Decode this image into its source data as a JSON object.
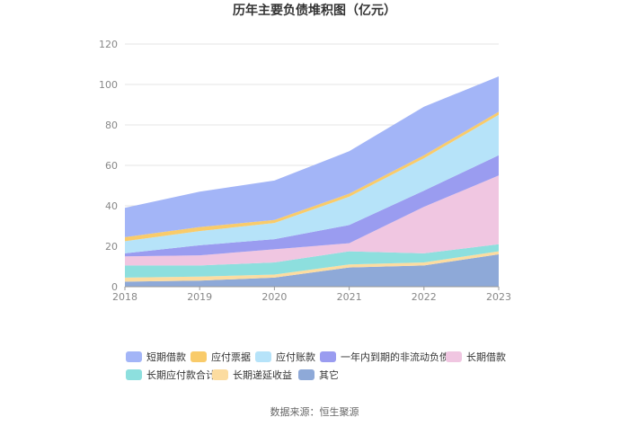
{
  "chart_data": {
    "type": "area",
    "stacked": true,
    "title": "历年主要负债堆积图（亿元）",
    "x": [
      "2018",
      "2019",
      "2020",
      "2021",
      "2022",
      "2023"
    ],
    "ylim": [
      0,
      120
    ],
    "yticks": [
      0,
      20,
      40,
      60,
      80,
      100,
      120
    ],
    "grid": true,
    "legend_position": "bottom",
    "series": [
      {
        "name": "其它",
        "color": "#8ea9d8",
        "values": [
          2.5,
          3,
          4.5,
          9.5,
          10.5,
          16
        ]
      },
      {
        "name": "长期递延收益",
        "color": "#fcdca0",
        "values": [
          2,
          2,
          1.5,
          1.5,
          1.5,
          1.5
        ]
      },
      {
        "name": "长期应付款合计",
        "color": "#8ddfde",
        "values": [
          6,
          5.5,
          6,
          6.5,
          4.5,
          3.5
        ]
      },
      {
        "name": "长期借款",
        "color": "#f0c6e1",
        "values": [
          4.5,
          5,
          6.5,
          4,
          23,
          34
        ]
      },
      {
        "name": "一年内到期的非流动负债",
        "color": "#9a9cf0",
        "values": [
          1.5,
          5,
          5,
          9,
          8,
          10
        ]
      },
      {
        "name": "应付账款",
        "color": "#b6e3f9",
        "values": [
          6,
          7,
          8,
          14,
          16,
          20
        ]
      },
      {
        "name": "应付票据",
        "color": "#f9cb6a",
        "values": [
          2,
          2,
          1.5,
          1.5,
          1.5,
          1.5
        ]
      },
      {
        "name": "短期借款",
        "color": "#a3b5f7",
        "values": [
          14.5,
          17.5,
          19.5,
          21,
          24,
          17.5
        ]
      }
    ],
    "legend_order": [
      "短期借款",
      "应付票据",
      "应付账款",
      "一年内到期的非流动负债",
      "长期借款",
      "长期应付款合计",
      "长期递延收益",
      "其它"
    ],
    "source": "数据来源：恒生聚源"
  }
}
